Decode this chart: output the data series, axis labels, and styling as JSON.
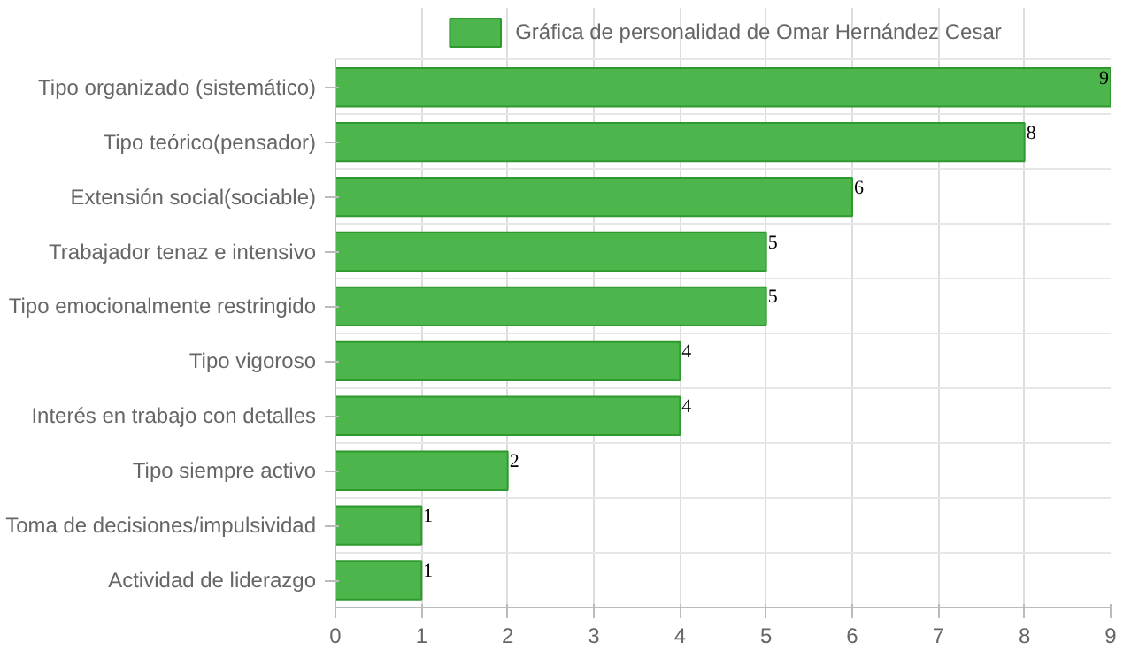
{
  "chart_data": {
    "type": "bar",
    "orientation": "horizontal",
    "categories": [
      "Tipo organizado (sistemático)",
      "Tipo teórico(pensador)",
      "Extensión social(sociable)",
      "Trabajador tenaz e intensivo",
      "Tipo emocionalmente restringido",
      "Tipo vigoroso",
      "Interés en trabajo con detalles",
      "Tipo siempre activo",
      "Toma de decisiones/impulsividad",
      "Actividad de liderazgo"
    ],
    "series": [
      {
        "name": "Gráfica de personalidad de Omar Hernández Cesar",
        "color": "#4cb54c",
        "values": [
          9,
          8,
          6,
          5,
          5,
          4,
          4,
          2,
          1,
          1
        ]
      }
    ],
    "xlim": [
      0,
      9
    ],
    "xticks": [
      0,
      1,
      2,
      3,
      4,
      5,
      6,
      7,
      8,
      9
    ],
    "grid": true,
    "legend": "top",
    "data_labels": true
  }
}
